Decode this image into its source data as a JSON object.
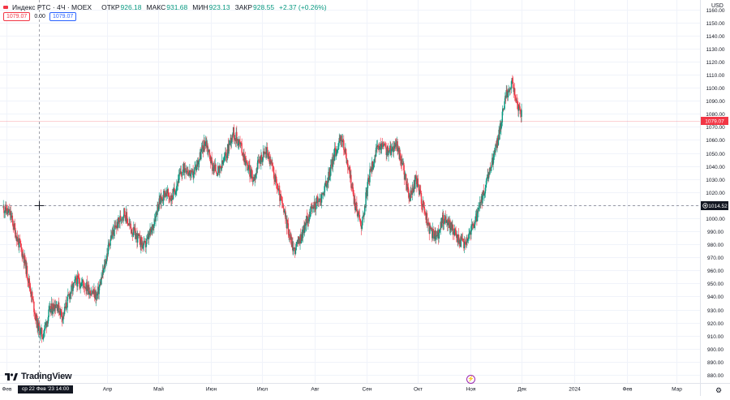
{
  "legend": {
    "symbol": "Индекс РТС · 4Ч · MOEX",
    "open_label": "ОТКР",
    "open_value": "926.18",
    "high_label": "МАКС",
    "high_value": "931.68",
    "low_label": "МИН",
    "low_value": "923.13",
    "close_label": "ЗАКР",
    "close_value": "928.55",
    "change": "+2.37 (+0.26%)"
  },
  "trade": {
    "sell": "1079.07",
    "spread": "0.00",
    "buy": "1079.07"
  },
  "currency": "USD",
  "logo_text": "TradingView",
  "crosshair_date": "ср 22 Фев '23  14:00",
  "colors": {
    "up": "#089981",
    "down": "#f23645",
    "grid": "#f0f3fa",
    "last_price_label": "#f23645",
    "crosshair_label": "#131722",
    "axis_text": "#131722"
  },
  "chart_data": {
    "type": "candlestick",
    "symbol": "Индекс РТС",
    "interval": "4Ч",
    "exchange": "MOEX",
    "y_axis": {
      "ticks": [
        "1160.00",
        "1150.00",
        "1140.00",
        "1130.00",
        "1120.00",
        "1110.00",
        "1100.00",
        "1090.00",
        "1080.00",
        "1070.00",
        "1060.00",
        "1050.00",
        "1040.00",
        "1030.00",
        "1020.00",
        "1010.00",
        "1000.00",
        "990.00",
        "980.00",
        "970.00",
        "960.00",
        "950.00",
        "940.00",
        "930.00",
        "920.00",
        "910.00",
        "900.00",
        "890.00",
        "880.00"
      ],
      "range": [
        875,
        1166
      ],
      "position": "right"
    },
    "x_axis": {
      "ticks": [
        {
          "label": "Фев",
          "date": "2023-02-01"
        },
        {
          "label": "Апр",
          "date": "2023-04-01"
        },
        {
          "label": "Май",
          "date": "2023-05-01"
        },
        {
          "label": "Июн",
          "date": "2023-06-01"
        },
        {
          "label": "Июл",
          "date": "2023-07-01"
        },
        {
          "label": "Авг",
          "date": "2023-08-01"
        },
        {
          "label": "Сен",
          "date": "2023-09-01"
        },
        {
          "label": "Окт",
          "date": "2023-10-01"
        },
        {
          "label": "Ноя",
          "date": "2023-11-01"
        },
        {
          "label": "Дек",
          "date": "2023-12-01"
        },
        {
          "label": "2024",
          "date": "2024-01-01"
        },
        {
          "label": "Фев",
          "date": "2024-02-01"
        },
        {
          "label": "Мар",
          "date": "2024-03-01"
        }
      ],
      "range": [
        "2023-01-28",
        "2024-03-15"
      ]
    },
    "series": [
      {
        "name": "Индекс РТС",
        "points": [
          [
            "2023-01-30",
            1008
          ],
          [
            "2023-02-03",
            1003
          ],
          [
            "2023-02-07",
            985
          ],
          [
            "2023-02-11",
            970
          ],
          [
            "2023-02-15",
            945
          ],
          [
            "2023-02-19",
            918
          ],
          [
            "2023-02-22",
            910
          ],
          [
            "2023-02-26",
            928
          ],
          [
            "2023-03-02",
            935
          ],
          [
            "2023-03-06",
            925
          ],
          [
            "2023-03-10",
            942
          ],
          [
            "2023-03-14",
            952
          ],
          [
            "2023-03-18",
            950
          ],
          [
            "2023-03-22",
            945
          ],
          [
            "2023-03-26",
            940
          ],
          [
            "2023-03-30",
            960
          ],
          [
            "2023-04-03",
            985
          ],
          [
            "2023-04-07",
            995
          ],
          [
            "2023-04-11",
            1005
          ],
          [
            "2023-04-15",
            992
          ],
          [
            "2023-04-19",
            985
          ],
          [
            "2023-04-23",
            978
          ],
          [
            "2023-04-27",
            990
          ],
          [
            "2023-05-01",
            1010
          ],
          [
            "2023-05-05",
            1020
          ],
          [
            "2023-05-09",
            1015
          ],
          [
            "2023-05-13",
            1030
          ],
          [
            "2023-05-17",
            1040
          ],
          [
            "2023-05-21",
            1032
          ],
          [
            "2023-05-25",
            1045
          ],
          [
            "2023-05-29",
            1060
          ],
          [
            "2023-06-02",
            1040
          ],
          [
            "2023-06-06",
            1035
          ],
          [
            "2023-06-10",
            1048
          ],
          [
            "2023-06-14",
            1066
          ],
          [
            "2023-06-18",
            1058
          ],
          [
            "2023-06-22",
            1042
          ],
          [
            "2023-06-26",
            1030
          ],
          [
            "2023-06-30",
            1045
          ],
          [
            "2023-07-04",
            1052
          ],
          [
            "2023-07-08",
            1035
          ],
          [
            "2023-07-12",
            1015
          ],
          [
            "2023-07-16",
            995
          ],
          [
            "2023-07-20",
            975
          ],
          [
            "2023-07-24",
            985
          ],
          [
            "2023-07-28",
            1000
          ],
          [
            "2023-08-01",
            1010
          ],
          [
            "2023-08-05",
            1015
          ],
          [
            "2023-08-09",
            1030
          ],
          [
            "2023-08-13",
            1050
          ],
          [
            "2023-08-17",
            1062
          ],
          [
            "2023-08-21",
            1040
          ],
          [
            "2023-08-25",
            1010
          ],
          [
            "2023-08-29",
            995
          ],
          [
            "2023-09-02",
            1030
          ],
          [
            "2023-09-06",
            1050
          ],
          [
            "2023-09-10",
            1056
          ],
          [
            "2023-09-14",
            1050
          ],
          [
            "2023-09-18",
            1058
          ],
          [
            "2023-09-22",
            1040
          ],
          [
            "2023-09-26",
            1015
          ],
          [
            "2023-09-30",
            1030
          ],
          [
            "2023-10-04",
            1010
          ],
          [
            "2023-10-08",
            990
          ],
          [
            "2023-10-12",
            985
          ],
          [
            "2023-10-16",
            1000
          ],
          [
            "2023-10-20",
            995
          ],
          [
            "2023-10-24",
            985
          ],
          [
            "2023-10-28",
            980
          ],
          [
            "2023-11-01",
            990
          ],
          [
            "2023-11-05",
            1002
          ],
          [
            "2023-11-09",
            1020
          ],
          [
            "2023-11-13",
            1040
          ],
          [
            "2023-11-17",
            1060
          ],
          [
            "2023-11-21",
            1090
          ],
          [
            "2023-11-25",
            1105
          ],
          [
            "2023-11-29",
            1085
          ],
          [
            "2023-12-01",
            1079.07
          ]
        ]
      }
    ],
    "last_price": "1079.07",
    "crosshair": {
      "date": "ср 22 Фев '23  14:00",
      "price": "1014.52"
    },
    "grid": true,
    "legend_position": "top-left"
  }
}
